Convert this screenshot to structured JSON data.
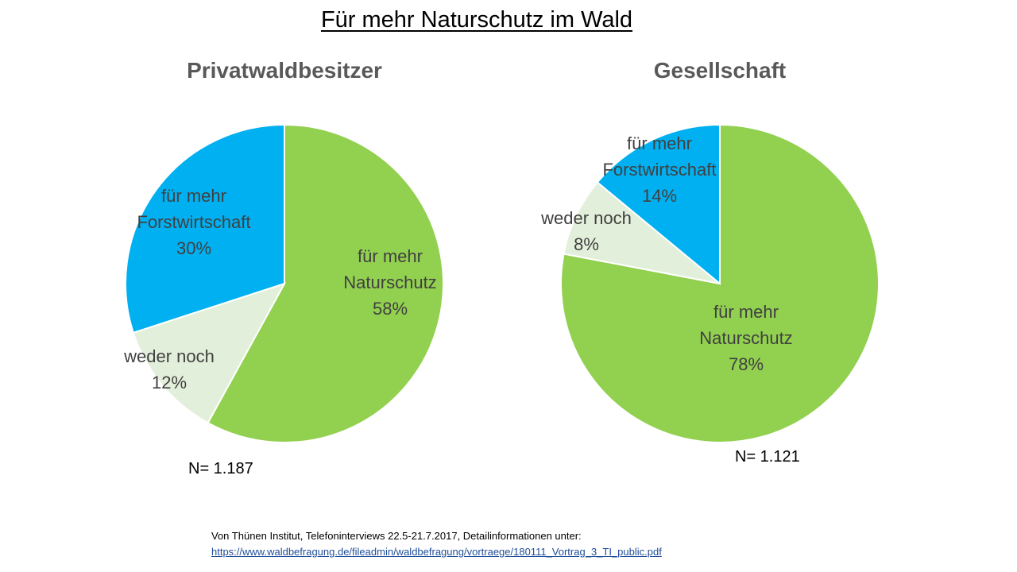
{
  "page_title": "Für mehr Naturschutz im Wald",
  "source": {
    "line1": "Von Thünen Institut, Telefoninterviews 22.5-21.7.2017, Detailinformationen unter:",
    "link": "https://www.waldbefragung.de/fileadmin/waldbefragung/vortraege/180111_Vortrag_3_TI_public.pdf"
  },
  "colors": {
    "naturschutz": "#92D050",
    "weder_noch": "#E2EFDA",
    "forstwirtschaft": "#00B0F0"
  },
  "chart_data": [
    {
      "type": "pie",
      "title": "Privatwaldbesitzer",
      "sample_size": "N= 1.187",
      "slices": [
        {
          "label_lines": [
            "für mehr",
            "Naturschutz"
          ],
          "value": 58,
          "value_label": "58%",
          "color_key": "naturschutz"
        },
        {
          "label_lines": [
            "weder noch"
          ],
          "value": 12,
          "value_label": "12%",
          "color_key": "weder_noch"
        },
        {
          "label_lines": [
            "für mehr",
            "Forstwirtschaft"
          ],
          "value": 30,
          "value_label": "30%",
          "color_key": "forstwirtschaft"
        }
      ]
    },
    {
      "type": "pie",
      "title": "Gesellschaft",
      "sample_size": "N= 1.121",
      "slices": [
        {
          "label_lines": [
            "für mehr",
            "Naturschutz"
          ],
          "value": 78,
          "value_label": "78%",
          "color_key": "naturschutz"
        },
        {
          "label_lines": [
            "weder noch"
          ],
          "value": 8,
          "value_label": "8%",
          "color_key": "weder_noch"
        },
        {
          "label_lines": [
            "für mehr",
            "Forstwirtschaft"
          ],
          "value": 14,
          "value_label": "14%",
          "color_key": "forstwirtschaft"
        }
      ]
    }
  ]
}
